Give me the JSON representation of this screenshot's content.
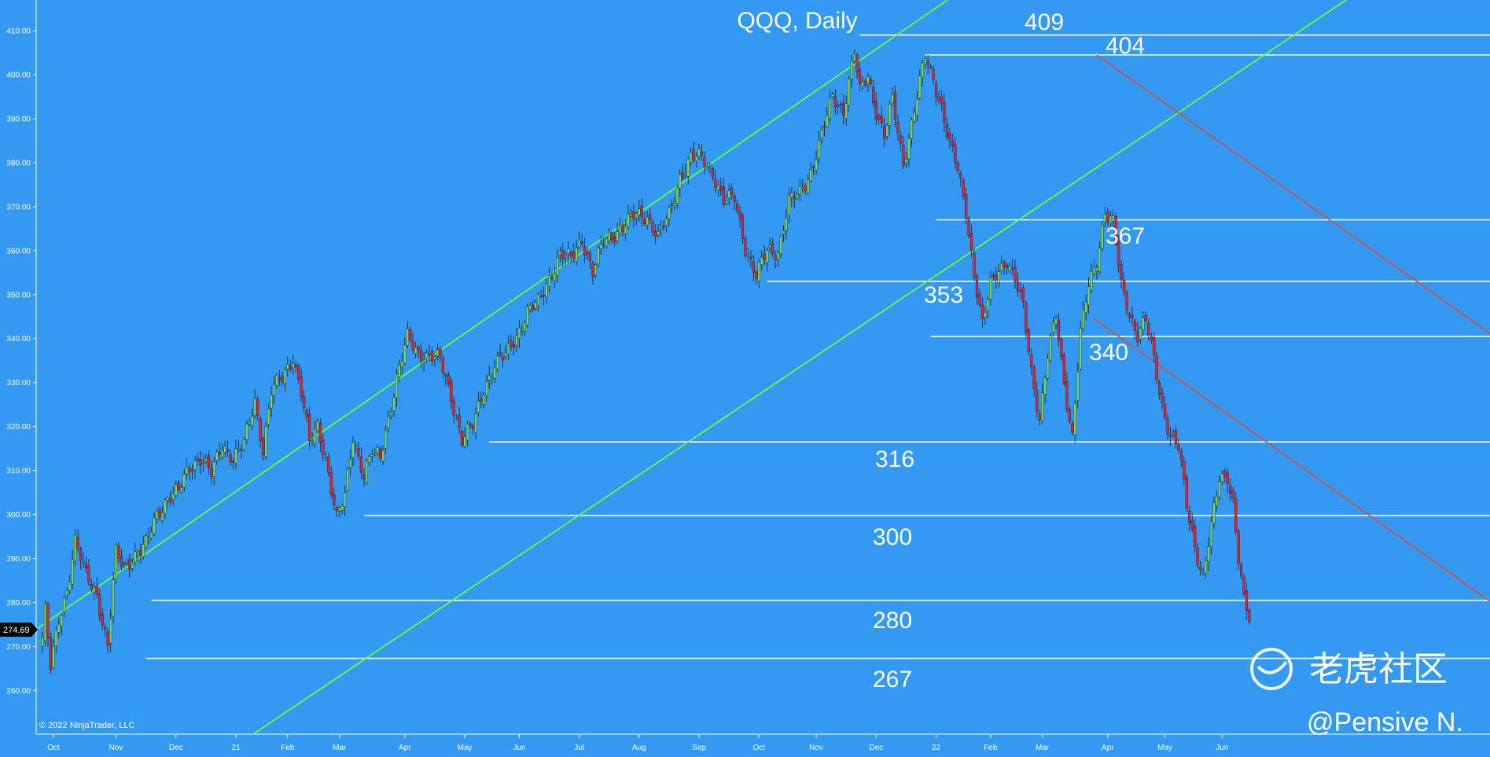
{
  "title": "QQQ, Daily",
  "copyright": "© 2022 NinjaTrader, LLC",
  "watermark": "老虎社区",
  "author": "@Pensive N.",
  "current_price": "274.69",
  "colors": {
    "background": "#3399f2",
    "up_candle": "#7ddc5c",
    "down_candle": "#e8202a",
    "channel": "#66ff33",
    "resistance": "#d9503a",
    "level_line": "#ffffff",
    "text": "#ffffff"
  },
  "chart_data": {
    "type": "candlestick",
    "title": "QQQ, Daily",
    "ylim": [
      255,
      413
    ],
    "y_ticks": [
      {
        "label": "410.00",
        "value": 410
      },
      {
        "label": "400.00",
        "value": 400
      },
      {
        "label": "390.00",
        "value": 390
      },
      {
        "label": "380.00",
        "value": 380
      },
      {
        "label": "370.00",
        "value": 370
      },
      {
        "label": "360.00",
        "value": 360
      },
      {
        "label": "350.00",
        "value": 350
      },
      {
        "label": "340.00",
        "value": 340
      },
      {
        "label": "330.00",
        "value": 330
      },
      {
        "label": "320.00",
        "value": 320
      },
      {
        "label": "310.00",
        "value": 310
      },
      {
        "label": "300.00",
        "value": 300
      },
      {
        "label": "290.00",
        "value": 290
      },
      {
        "label": "280.00",
        "value": 280
      },
      {
        "label": "270.00",
        "value": 270
      },
      {
        "label": "260.00",
        "value": 260
      }
    ],
    "x_ticks": [
      {
        "label": "Oct",
        "bar": 4
      },
      {
        "label": "Nov",
        "bar": 27
      },
      {
        "label": "Dec",
        "bar": 49
      },
      {
        "label": "21",
        "bar": 71
      },
      {
        "label": "Feb",
        "bar": 90
      },
      {
        "label": "Mar",
        "bar": 109
      },
      {
        "label": "Apr",
        "bar": 133
      },
      {
        "label": "May",
        "bar": 155
      },
      {
        "label": "Jun",
        "bar": 175
      },
      {
        "label": "Jul",
        "bar": 197
      },
      {
        "label": "Aug",
        "bar": 219
      },
      {
        "label": "Sep",
        "bar": 241
      },
      {
        "label": "Oct",
        "bar": 263
      },
      {
        "label": "Nov",
        "bar": 284
      },
      {
        "label": "Dec",
        "bar": 306
      },
      {
        "label": "22",
        "bar": 328
      },
      {
        "label": "Feb",
        "bar": 348
      },
      {
        "label": "Mar",
        "bar": 367
      },
      {
        "label": "Apr",
        "bar": 391
      },
      {
        "label": "May",
        "bar": 412
      },
      {
        "label": "Jun",
        "bar": 433
      }
    ],
    "anchors": [
      [
        0,
        272
      ],
      [
        1,
        278
      ],
      [
        3,
        265
      ],
      [
        6,
        276
      ],
      [
        9,
        283
      ],
      [
        12,
        294
      ],
      [
        16,
        286
      ],
      [
        20,
        282
      ],
      [
        24,
        270
      ],
      [
        27,
        291
      ],
      [
        30,
        288
      ],
      [
        34,
        291
      ],
      [
        38,
        293
      ],
      [
        42,
        300
      ],
      [
        46,
        304
      ],
      [
        50,
        305
      ],
      [
        54,
        311
      ],
      [
        58,
        313
      ],
      [
        62,
        309
      ],
      [
        66,
        316
      ],
      [
        70,
        313
      ],
      [
        74,
        316
      ],
      [
        78,
        326
      ],
      [
        81,
        315
      ],
      [
        84,
        328
      ],
      [
        88,
        331
      ],
      [
        92,
        336
      ],
      [
        95,
        328
      ],
      [
        98,
        316
      ],
      [
        101,
        320
      ],
      [
        104,
        313
      ],
      [
        108,
        299
      ],
      [
        111,
        304
      ],
      [
        114,
        318
      ],
      [
        118,
        309
      ],
      [
        121,
        314
      ],
      [
        124,
        313
      ],
      [
        127,
        322
      ],
      [
        130,
        331
      ],
      [
        134,
        340
      ],
      [
        138,
        337
      ],
      [
        142,
        336
      ],
      [
        146,
        335
      ],
      [
        150,
        327
      ],
      [
        154,
        317
      ],
      [
        158,
        320
      ],
      [
        162,
        329
      ],
      [
        166,
        334
      ],
      [
        170,
        336
      ],
      [
        174,
        341
      ],
      [
        178,
        346
      ],
      [
        182,
        348
      ],
      [
        186,
        354
      ],
      [
        190,
        359
      ],
      [
        194,
        358
      ],
      [
        198,
        363
      ],
      [
        202,
        355
      ],
      [
        206,
        362
      ],
      [
        210,
        364
      ],
      [
        214,
        366
      ],
      [
        218,
        368
      ],
      [
        222,
        368
      ],
      [
        226,
        363
      ],
      [
        230,
        368
      ],
      [
        234,
        377
      ],
      [
        238,
        381
      ],
      [
        242,
        381
      ],
      [
        246,
        378
      ],
      [
        250,
        371
      ],
      [
        254,
        372
      ],
      [
        258,
        361
      ],
      [
        262,
        354
      ],
      [
        266,
        360
      ],
      [
        270,
        360
      ],
      [
        274,
        371
      ],
      [
        278,
        373
      ],
      [
        282,
        378
      ],
      [
        286,
        386
      ],
      [
        290,
        395
      ],
      [
        294,
        392
      ],
      [
        298,
        405
      ],
      [
        300,
        396
      ],
      [
        303,
        400
      ],
      [
        306,
        392
      ],
      [
        309,
        386
      ],
      [
        312,
        394
      ],
      [
        316,
        380
      ],
      [
        320,
        392
      ],
      [
        324,
        404
      ],
      [
        327,
        399
      ],
      [
        330,
        393
      ],
      [
        333,
        384
      ],
      [
        336,
        378
      ],
      [
        339,
        369
      ],
      [
        342,
        355
      ],
      [
        345,
        343
      ],
      [
        348,
        352
      ],
      [
        351,
        356
      ],
      [
        354,
        358
      ],
      [
        357,
        353
      ],
      [
        360,
        347
      ],
      [
        363,
        333
      ],
      [
        366,
        322
      ],
      [
        369,
        336
      ],
      [
        372,
        345
      ],
      [
        375,
        330
      ],
      [
        378,
        318
      ],
      [
        381,
        341
      ],
      [
        384,
        352
      ],
      [
        387,
        358
      ],
      [
        390,
        369
      ],
      [
        393,
        366
      ],
      [
        396,
        352
      ],
      [
        399,
        346
      ],
      [
        402,
        341
      ],
      [
        405,
        344
      ],
      [
        408,
        335
      ],
      [
        411,
        325
      ],
      [
        414,
        318
      ],
      [
        417,
        315
      ],
      [
        420,
        302
      ],
      [
        423,
        293
      ],
      [
        426,
        286
      ],
      [
        429,
        297
      ],
      [
        432,
        308
      ],
      [
        435,
        309
      ],
      [
        437,
        303
      ],
      [
        439,
        290
      ],
      [
        441,
        280
      ],
      [
        443,
        276
      ]
    ],
    "levels": [
      {
        "label": "409",
        "value": 409
      },
      {
        "label": "404",
        "value": 404.5
      },
      {
        "label": "367",
        "value": 367
      },
      {
        "label": "353",
        "value": 353
      },
      {
        "label": "340",
        "value": 340.5
      },
      {
        "label": "316",
        "value": 316.5
      },
      {
        "label": "300",
        "value": 299.8
      },
      {
        "label": "280",
        "value": 280.5
      },
      {
        "label": "267",
        "value": 267.3
      }
    ]
  }
}
